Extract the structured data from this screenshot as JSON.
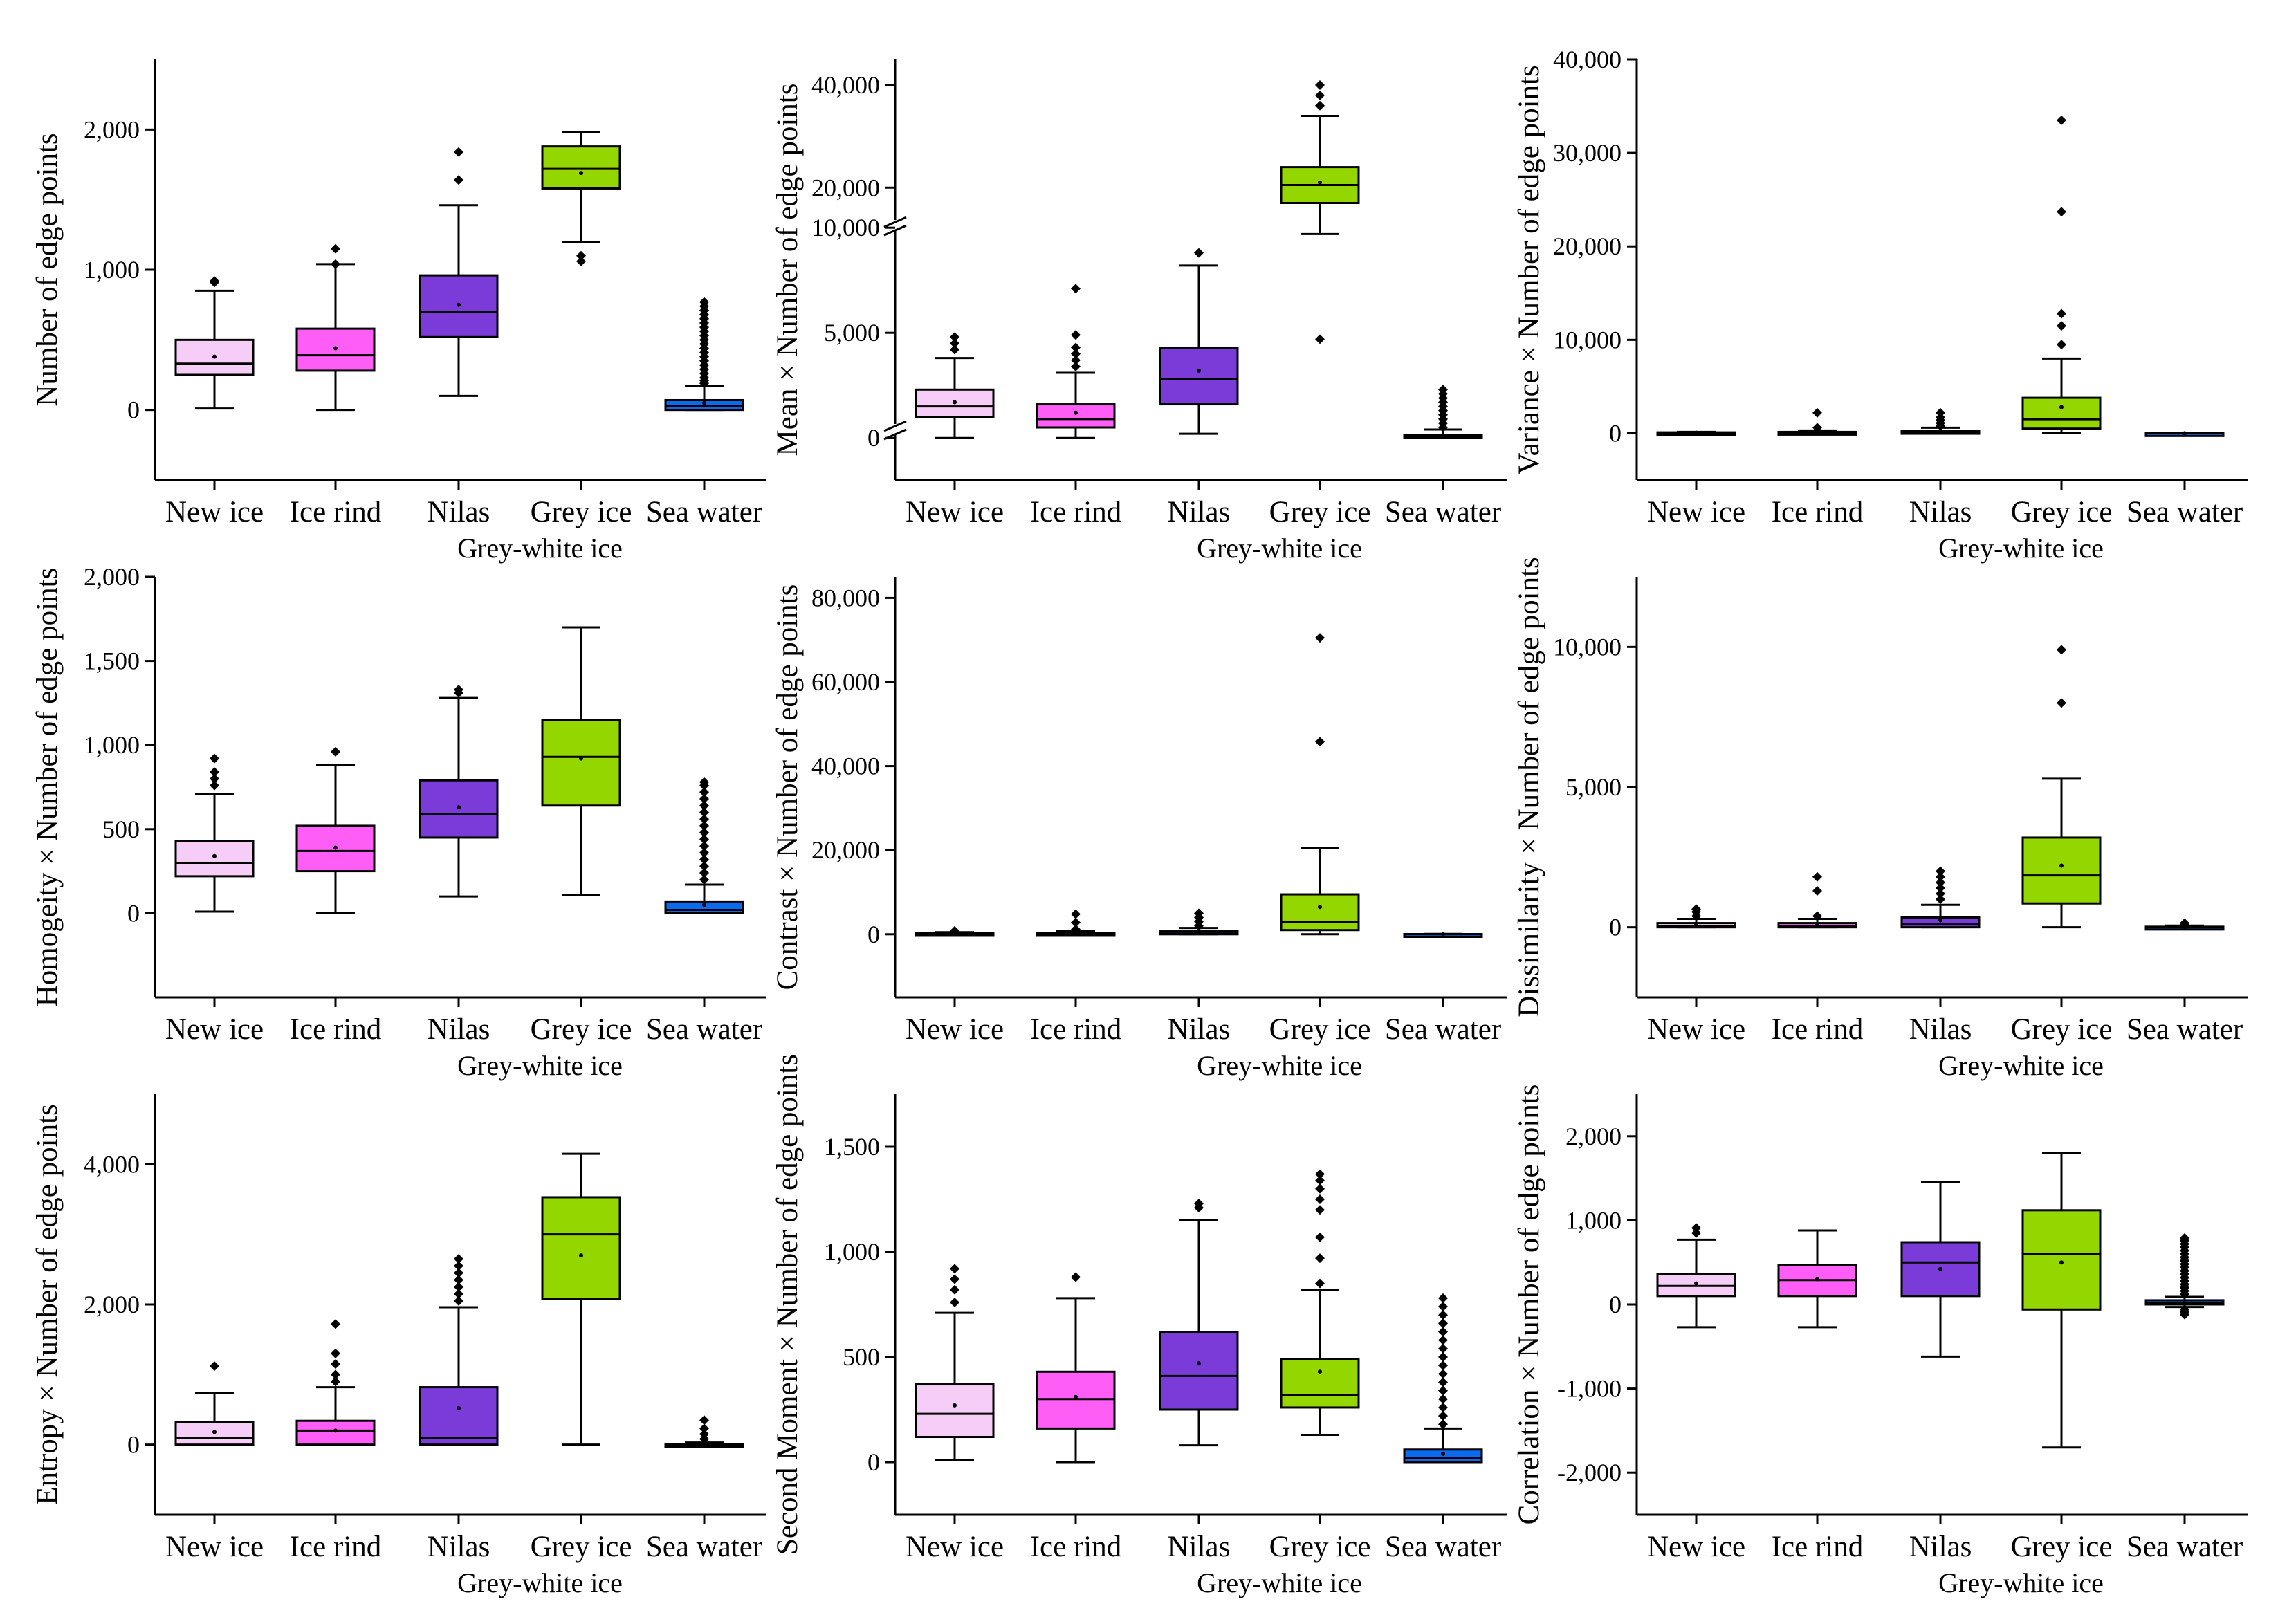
{
  "colors": {
    "new_ice": "#F6CDF6",
    "ice_rind": "#FF5EF6",
    "nilas": "#7A3BD8",
    "grey_ice": "#94D600",
    "sea_water": "#0A6BEF"
  },
  "chart_data": [
    {
      "type": "box",
      "panel": "a",
      "ylabel": "Number of edge points",
      "ylim": [
        -500,
        2500
      ],
      "yticks": [
        0,
        1000,
        2000
      ],
      "ytick_labels": [
        "0",
        "1,000",
        "2,000"
      ],
      "categories": [
        "New ice",
        "Ice rind",
        "Nilas",
        "Grey ice",
        "Sea water"
      ],
      "sublabel": "Grey-white ice",
      "series": [
        {
          "name": "New ice",
          "min": 10,
          "q1": 250,
          "median": 330,
          "q3": 500,
          "max": 850,
          "mean": 380,
          "outliers": [
            910,
            920
          ]
        },
        {
          "name": "Ice rind",
          "min": 0,
          "q1": 280,
          "median": 390,
          "q3": 580,
          "max": 1040,
          "mean": 440,
          "outliers": [
            1040,
            1150
          ]
        },
        {
          "name": "Nilas",
          "min": 100,
          "q1": 520,
          "median": 700,
          "q3": 960,
          "max": 1460,
          "mean": 750,
          "outliers": [
            1640,
            1840
          ]
        },
        {
          "name": "Grey ice",
          "min": 1200,
          "q1": 1580,
          "median": 1720,
          "q3": 1880,
          "max": 1980,
          "mean": 1690,
          "outliers": [
            1060,
            1100
          ]
        },
        {
          "name": "Sea water",
          "min": 0,
          "q1": 0,
          "median": 30,
          "q3": 70,
          "max": 170,
          "mean": 50,
          "outliers": [
            190,
            210,
            230,
            260,
            290,
            320,
            350,
            380,
            410,
            440,
            470,
            500,
            530,
            560,
            590,
            620,
            650,
            680,
            710,
            740,
            770
          ]
        }
      ]
    },
    {
      "type": "box",
      "panel": "b",
      "ylabel": "Mean × Number of edge points",
      "broken_axis": true,
      "lower_range": [
        -2000,
        10000
      ],
      "upper_range": [
        13000,
        45000
      ],
      "yticks": [
        0,
        5000,
        10000,
        20000,
        40000
      ],
      "ytick_labels": [
        "0",
        "5,000",
        "10,000",
        "20,000",
        "40,000"
      ],
      "categories": [
        "New ice",
        "Ice rind",
        "Nilas",
        "Grey ice",
        "Sea water"
      ],
      "sublabel": "Grey-white ice",
      "series": [
        {
          "name": "New ice",
          "min": 0,
          "q1": 1000,
          "median": 1500,
          "q3": 2300,
          "max": 3800,
          "mean": 1700,
          "outliers": [
            4200,
            4500,
            4800
          ]
        },
        {
          "name": "Ice rind",
          "min": 0,
          "q1": 500,
          "median": 900,
          "q3": 1600,
          "max": 3100,
          "mean": 1200,
          "outliers": [
            3400,
            3700,
            4000,
            4300,
            4900,
            7100
          ]
        },
        {
          "name": "Nilas",
          "min": 200,
          "q1": 1600,
          "median": 2800,
          "q3": 4300,
          "max": 8200,
          "mean": 3200,
          "outliers": [
            8800
          ]
        },
        {
          "name": "Grey ice",
          "min": 9700,
          "q1": 17000,
          "median": 20500,
          "q3": 24000,
          "max": 34000,
          "mean": 21000,
          "outliers": [
            4700,
            36000,
            38000,
            40000
          ]
        },
        {
          "name": "Sea water",
          "min": 0,
          "q1": 0,
          "median": 50,
          "q3": 150,
          "max": 400,
          "mean": 100,
          "outliers": [
            500,
            700,
            900,
            1100,
            1300,
            1500,
            1700,
            1900,
            2100,
            2300
          ]
        }
      ]
    },
    {
      "type": "box",
      "panel": "c",
      "ylabel": "Variance × Number of edge points",
      "ylim": [
        -5000,
        40000
      ],
      "yticks": [
        0,
        10000,
        20000,
        30000,
        40000
      ],
      "ytick_labels": [
        "0",
        "10,000",
        "20,000",
        "30,000",
        "40,000"
      ],
      "categories": [
        "New ice",
        "Ice rind",
        "Nilas",
        "Grey ice",
        "Sea water"
      ],
      "sublabel": "Grey-white ice",
      "series": [
        {
          "name": "New ice",
          "min": 0,
          "q1": 0,
          "median": 50,
          "q3": 100,
          "max": 150,
          "mean": 60,
          "outliers": []
        },
        {
          "name": "Ice rind",
          "min": 0,
          "q1": 0,
          "median": 50,
          "q3": 150,
          "max": 300,
          "mean": 80,
          "outliers": [
            600,
            2200
          ]
        },
        {
          "name": "Nilas",
          "min": 0,
          "q1": 0,
          "median": 100,
          "q3": 250,
          "max": 600,
          "mean": 150,
          "outliers": [
            800,
            1100,
            1400,
            1700,
            2200
          ]
        },
        {
          "name": "Grey ice",
          "min": 0,
          "q1": 500,
          "median": 1500,
          "q3": 3800,
          "max": 8000,
          "mean": 2800,
          "outliers": [
            9500,
            11500,
            12800,
            23700,
            33500
          ]
        },
        {
          "name": "Sea water",
          "min": 0,
          "q1": 0,
          "median": 0,
          "q3": 10,
          "max": 30,
          "mean": 5,
          "outliers": []
        }
      ]
    },
    {
      "type": "box",
      "panel": "d",
      "ylabel": "Homogeity × Number of edge points",
      "ylim": [
        -500,
        2000
      ],
      "yticks": [
        0,
        500,
        1000,
        1500,
        2000
      ],
      "ytick_labels": [
        "0",
        "500",
        "1,000",
        "1,500",
        "2,000"
      ],
      "categories": [
        "New ice",
        "Ice rind",
        "Nilas",
        "Grey ice",
        "Sea water"
      ],
      "sublabel": "Grey-white ice",
      "series": [
        {
          "name": "New ice",
          "min": 10,
          "q1": 220,
          "median": 300,
          "q3": 430,
          "max": 710,
          "mean": 340,
          "outliers": [
            760,
            800,
            840,
            920
          ]
        },
        {
          "name": "Ice rind",
          "min": 0,
          "q1": 250,
          "median": 370,
          "q3": 520,
          "max": 880,
          "mean": 390,
          "outliers": [
            960
          ]
        },
        {
          "name": "Nilas",
          "min": 100,
          "q1": 450,
          "median": 590,
          "q3": 790,
          "max": 1280,
          "mean": 630,
          "outliers": [
            1310,
            1330
          ]
        },
        {
          "name": "Grey ice",
          "min": 110,
          "q1": 640,
          "median": 930,
          "q3": 1150,
          "max": 1700,
          "mean": 920,
          "outliers": []
        },
        {
          "name": "Sea water",
          "min": 0,
          "q1": 0,
          "median": 20,
          "q3": 70,
          "max": 170,
          "mean": 50,
          "outliers": [
            200,
            240,
            280,
            320,
            360,
            400,
            440,
            480,
            520,
            560,
            600,
            640,
            680,
            720,
            760,
            780
          ]
        }
      ]
    },
    {
      "type": "box",
      "panel": "e",
      "ylabel": "Contrast × Number of edge points",
      "ylim": [
        -15000,
        85000
      ],
      "yticks": [
        0,
        20000,
        40000,
        60000,
        80000
      ],
      "ytick_labels": [
        "0",
        "20,000",
        "40,000",
        "60,000",
        "80,000"
      ],
      "categories": [
        "New ice",
        "Ice rind",
        "Nilas",
        "Grey ice",
        "Sea water"
      ],
      "sublabel": "Grey-white ice",
      "series": [
        {
          "name": "New ice",
          "min": 0,
          "q1": 0,
          "median": 100,
          "q3": 300,
          "max": 500,
          "mean": 200,
          "outliers": [
            800
          ]
        },
        {
          "name": "Ice rind",
          "min": 0,
          "q1": 0,
          "median": 100,
          "q3": 300,
          "max": 700,
          "mean": 250,
          "outliers": [
            1200,
            2800,
            4800
          ]
        },
        {
          "name": "Nilas",
          "min": 0,
          "q1": 0,
          "median": 200,
          "q3": 700,
          "max": 1500,
          "mean": 500,
          "outliers": [
            2000,
            3000,
            4000,
            5000
          ]
        },
        {
          "name": "Grey ice",
          "min": 0,
          "q1": 1000,
          "median": 3000,
          "q3": 9500,
          "max": 20500,
          "mean": 6500,
          "outliers": [
            45800,
            70500
          ]
        },
        {
          "name": "Sea water",
          "min": 0,
          "q1": 0,
          "median": 0,
          "q3": 50,
          "max": 100,
          "mean": 20,
          "outliers": []
        }
      ]
    },
    {
      "type": "box",
      "panel": "f",
      "ylabel": "Dissimilarity × Number of edge points",
      "ylim": [
        -2500,
        12500
      ],
      "yticks": [
        0,
        5000,
        10000
      ],
      "ytick_labels": [
        "0",
        "5,000",
        "10,000"
      ],
      "categories": [
        "New ice",
        "Ice rind",
        "Nilas",
        "Grey ice",
        "Sea water"
      ],
      "sublabel": "Grey-white ice",
      "series": [
        {
          "name": "New ice",
          "min": 0,
          "q1": 0,
          "median": 50,
          "q3": 150,
          "max": 300,
          "mean": 100,
          "outliers": [
            400,
            550,
            650
          ]
        },
        {
          "name": "Ice rind",
          "min": 0,
          "q1": 0,
          "median": 50,
          "q3": 150,
          "max": 300,
          "mean": 120,
          "outliers": [
            400,
            1300,
            1800
          ]
        },
        {
          "name": "Nilas",
          "min": 0,
          "q1": 0,
          "median": 100,
          "q3": 350,
          "max": 800,
          "mean": 250,
          "outliers": [
            1000,
            1200,
            1400,
            1600,
            1800,
            2000
          ]
        },
        {
          "name": "Grey ice",
          "min": 0,
          "q1": 850,
          "median": 1850,
          "q3": 3200,
          "max": 5300,
          "mean": 2200,
          "outliers": [
            8000,
            9900
          ]
        },
        {
          "name": "Sea water",
          "min": 0,
          "q1": 0,
          "median": 0,
          "q3": 20,
          "max": 60,
          "mean": 10,
          "outliers": [
            100,
            150
          ]
        }
      ]
    },
    {
      "type": "box",
      "panel": "g",
      "ylabel": "Entropy × Number of edge points",
      "ylim": [
        -1000,
        5000
      ],
      "yticks": [
        0,
        2000,
        4000
      ],
      "ytick_labels": [
        "0",
        "2,000",
        "4,000"
      ],
      "categories": [
        "New ice",
        "Ice rind",
        "Nilas",
        "Grey ice",
        "Sea water"
      ],
      "sublabel": "Grey-white ice",
      "series": [
        {
          "name": "New ice",
          "min": 0,
          "q1": 0,
          "median": 100,
          "q3": 320,
          "max": 740,
          "mean": 180,
          "outliers": [
            1120
          ]
        },
        {
          "name": "Ice rind",
          "min": 0,
          "q1": 0,
          "median": 200,
          "q3": 340,
          "max": 820,
          "mean": 200,
          "outliers": [
            900,
            1000,
            1150,
            1300,
            1720
          ]
        },
        {
          "name": "Nilas",
          "min": 0,
          "q1": 0,
          "median": 100,
          "q3": 820,
          "max": 1960,
          "mean": 520,
          "outliers": [
            2050,
            2150,
            2250,
            2350,
            2450,
            2550,
            2650
          ]
        },
        {
          "name": "Grey ice",
          "min": 0,
          "q1": 2080,
          "median": 3000,
          "q3": 3530,
          "max": 4150,
          "mean": 2700,
          "outliers": []
        },
        {
          "name": "Sea water",
          "min": 0,
          "q1": 0,
          "median": 0,
          "q3": 10,
          "max": 30,
          "mean": 5,
          "outliers": [
            80,
            150,
            230,
            350
          ]
        }
      ]
    },
    {
      "type": "box",
      "panel": "h",
      "ylabel": "Second Moment × Number of edge points",
      "ylim": [
        -250,
        1750
      ],
      "yticks": [
        0,
        500,
        1000,
        1500
      ],
      "ytick_labels": [
        "0",
        "500",
        "1,000",
        "1,500"
      ],
      "categories": [
        "New ice",
        "Ice rind",
        "Nilas",
        "Grey ice",
        "Sea water"
      ],
      "sublabel": "Grey-white ice",
      "series": [
        {
          "name": "New ice",
          "min": 10,
          "q1": 120,
          "median": 230,
          "q3": 370,
          "max": 710,
          "mean": 270,
          "outliers": [
            760,
            820,
            870,
            920
          ]
        },
        {
          "name": "Ice rind",
          "min": 0,
          "q1": 160,
          "median": 300,
          "q3": 430,
          "max": 780,
          "mean": 310,
          "outliers": [
            880
          ]
        },
        {
          "name": "Nilas",
          "min": 80,
          "q1": 250,
          "median": 410,
          "q3": 620,
          "max": 1150,
          "mean": 470,
          "outliers": [
            1210,
            1230
          ]
        },
        {
          "name": "Grey ice",
          "min": 130,
          "q1": 260,
          "median": 320,
          "q3": 490,
          "max": 820,
          "mean": 430,
          "outliers": [
            850,
            970,
            1070,
            1200,
            1250,
            1300,
            1340,
            1370
          ]
        },
        {
          "name": "Sea water",
          "min": 0,
          "q1": 0,
          "median": 20,
          "q3": 60,
          "max": 160,
          "mean": 40,
          "outliers": [
            180,
            220,
            260,
            300,
            340,
            380,
            420,
            460,
            500,
            540,
            580,
            620,
            660,
            700,
            740,
            780
          ]
        }
      ]
    },
    {
      "type": "box",
      "panel": "i",
      "ylabel": "Correlation × Number of edge points",
      "ylim": [
        -2500,
        2500
      ],
      "yticks": [
        -2000,
        -1000,
        0,
        1000,
        2000
      ],
      "ytick_labels": [
        "-2,000",
        "-1,000",
        "0",
        "1,000",
        "2,000"
      ],
      "categories": [
        "New ice",
        "Ice rind",
        "Nilas",
        "Grey ice",
        "Sea water"
      ],
      "sublabel": "Grey-white ice",
      "series": [
        {
          "name": "New ice",
          "min": -270,
          "q1": 100,
          "median": 220,
          "q3": 360,
          "max": 770,
          "mean": 250,
          "outliers": [
            850,
            910
          ]
        },
        {
          "name": "Ice rind",
          "min": -270,
          "q1": 100,
          "median": 290,
          "q3": 470,
          "max": 880,
          "mean": 300,
          "outliers": []
        },
        {
          "name": "Nilas",
          "min": -620,
          "q1": 100,
          "median": 500,
          "q3": 740,
          "max": 1460,
          "mean": 420,
          "outliers": []
        },
        {
          "name": "Grey ice",
          "min": -1700,
          "q1": -60,
          "median": 600,
          "q3": 1120,
          "max": 1800,
          "mean": 500,
          "outliers": []
        },
        {
          "name": "Sea water",
          "min": -30,
          "q1": 0,
          "median": 20,
          "q3": 50,
          "max": 90,
          "mean": 20,
          "outliers": [
            -120,
            -90,
            -60,
            120,
            160,
            200,
            240,
            280,
            320,
            360,
            400,
            440,
            480,
            520,
            560,
            600,
            640,
            680,
            720,
            760,
            790
          ]
        }
      ]
    }
  ]
}
